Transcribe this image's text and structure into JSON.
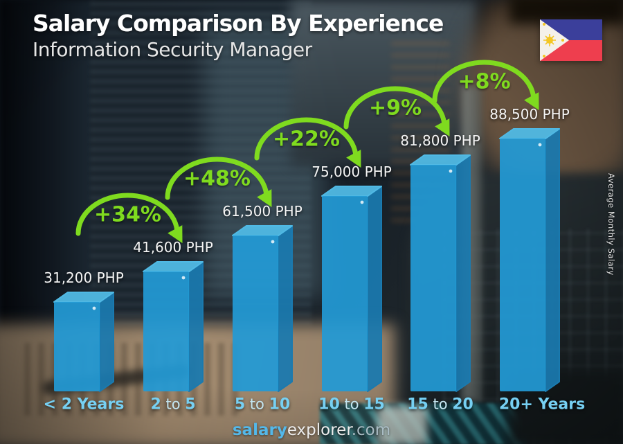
{
  "header": {
    "title": "Salary Comparison By Experience",
    "subtitle": "Information Security Manager"
  },
  "flag": {
    "country": "Philippines",
    "colors": {
      "blue": "#3b3f9b",
      "red": "#ee3e4e",
      "white": "#f4f1ea",
      "yellow": "#f3c623"
    }
  },
  "footer": {
    "brand_bold": "salary",
    "brand_regular": "explorer",
    "domain_suffix": ".com"
  },
  "chart_data": {
    "type": "bar",
    "title": "Salary Comparison By Experience",
    "subtitle": "Information Security Manager",
    "ylabel": "Average Monthly Salary",
    "unit": "PHP",
    "grid": false,
    "legend": "none",
    "categories": [
      "< 2 Years",
      "2 to 5",
      "5 to 10",
      "10 to 15",
      "15 to 20",
      "20+ Years"
    ],
    "values": [
      31200,
      41600,
      61500,
      75000,
      81800,
      88500
    ],
    "value_labels": [
      "31,200 PHP",
      "41,600 PHP",
      "61,500 PHP",
      "75,000 PHP",
      "81,800 PHP",
      "88,500 PHP"
    ],
    "increases": [
      {
        "from": "< 2 Years",
        "to": "2 to 5",
        "label": "+34%",
        "percent": 34
      },
      {
        "from": "2 to 5",
        "to": "5 to 10",
        "label": "+48%",
        "percent": 48
      },
      {
        "from": "5 to 10",
        "to": "10 to 15",
        "label": "+22%",
        "percent": 22
      },
      {
        "from": "10 to 15",
        "to": "15 to 20",
        "label": "+9%",
        "percent": 9
      },
      {
        "from": "15 to 20",
        "to": "20+ Years",
        "label": "+8%",
        "percent": 8
      }
    ],
    "colors": {
      "bar_front": "#229ad5",
      "bar_top": "#50b9e4",
      "bar_side": "#1a7aaf",
      "increase_green": "#7fdb1f",
      "value_text": "#f5f5f5",
      "category_text": "#76d0f3"
    }
  }
}
